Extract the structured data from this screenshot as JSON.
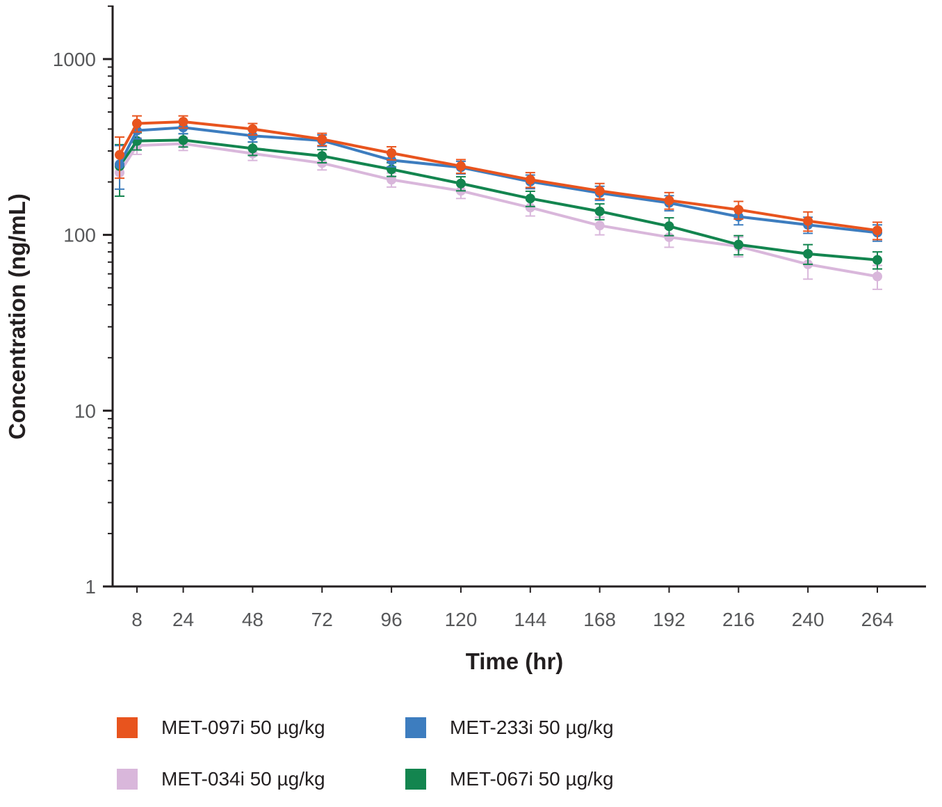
{
  "chart_data": {
    "type": "line",
    "title": "",
    "xlabel": "Time (hr)",
    "ylabel": "Concentration (ng/mL)",
    "y_scale": "log",
    "xlim": [
      0,
      280
    ],
    "ylim": [
      1,
      2000
    ],
    "x_ticks": [
      8,
      24,
      48,
      72,
      96,
      120,
      144,
      168,
      192,
      216,
      240,
      264
    ],
    "y_ticks": [
      1,
      10,
      100,
      1000
    ],
    "grid": false,
    "legend_position": "bottom",
    "x": [
      2,
      8,
      24,
      48,
      72,
      96,
      120,
      144,
      168,
      192,
      216,
      240,
      264
    ],
    "series": [
      {
        "name": "MET-097i 50 µg/kg",
        "color": "#E8541E",
        "values": [
          285,
          430,
          440,
          400,
          350,
          292,
          246,
          206,
          178,
          157,
          139,
          120,
          106
        ],
        "errors": [
          75,
          45,
          35,
          30,
          28,
          25,
          22,
          20,
          18,
          17,
          16,
          15,
          12
        ]
      },
      {
        "name": "MET-233i 50 µg/kg",
        "color": "#3D7DBF",
        "values": [
          252,
          392,
          408,
          366,
          344,
          266,
          242,
          201,
          173,
          152,
          127,
          114,
          103
        ],
        "errors": [
          70,
          40,
          32,
          28,
          26,
          22,
          20,
          18,
          16,
          15,
          13,
          12,
          11
        ]
      },
      {
        "name": "MET-034i 50 µg/kg",
        "color": "#D9B7DB",
        "values": [
          226,
          322,
          330,
          290,
          256,
          206,
          178,
          143,
          113,
          97,
          86,
          68,
          58
        ],
        "errors": [
          60,
          35,
          28,
          25,
          22,
          19,
          17,
          15,
          13,
          12,
          11,
          12,
          9
        ]
      },
      {
        "name": "MET-067i 50 µg/kg",
        "color": "#13854F",
        "values": [
          246,
          342,
          346,
          310,
          281,
          236,
          196,
          161,
          136,
          112,
          88,
          78,
          72
        ],
        "errors": [
          80,
          38,
          30,
          27,
          24,
          21,
          18,
          16,
          14,
          13,
          11,
          10,
          8
        ]
      }
    ],
    "draw_order": [
      2,
      3,
      1,
      0
    ]
  }
}
